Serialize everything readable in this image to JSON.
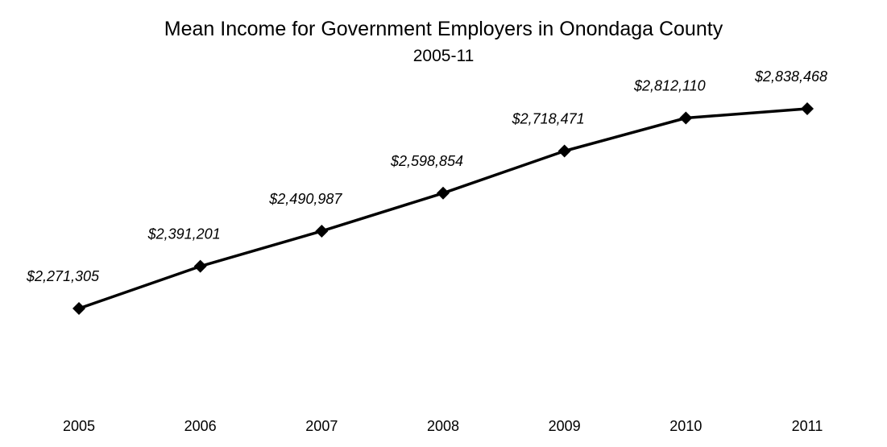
{
  "chart_data": {
    "type": "line",
    "title": "Mean Income for Government Employers in Onondaga County",
    "subtitle": "2005-11",
    "xlabel": "",
    "ylabel": "",
    "categories": [
      "2005",
      "2006",
      "2007",
      "2008",
      "2009",
      "2010",
      "2011"
    ],
    "series": [
      {
        "values": [
          2271305,
          2391201,
          2490987,
          2598854,
          2718471,
          2812110,
          2838468
        ],
        "data_labels": [
          "$2,271,305",
          "$2,391,201",
          "$2,490,987",
          "$2,598,854",
          "$2,718,471",
          "$2,812,110",
          "$2,838,468"
        ],
        "color": "#000000",
        "marker": "diamond"
      }
    ],
    "ylim": [
      1950000,
      2950000
    ],
    "grid": false,
    "legend": "none",
    "y_axis_visible": false
  }
}
